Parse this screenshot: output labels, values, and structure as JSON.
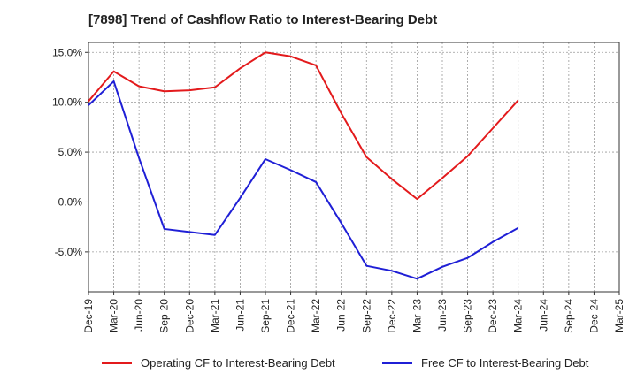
{
  "title": "[7898]  Trend of Cashflow Ratio to Interest-Bearing Debt",
  "chart_data": {
    "type": "line",
    "title": "[7898]  Trend of Cashflow Ratio to Interest-Bearing Debt",
    "xlabel": "",
    "ylabel": "",
    "categories": [
      "Dec-19",
      "Mar-20",
      "Jun-20",
      "Sep-20",
      "Dec-20",
      "Mar-21",
      "Jun-21",
      "Sep-21",
      "Dec-21",
      "Mar-22",
      "Jun-22",
      "Sep-22",
      "Dec-22",
      "Mar-23",
      "Jun-23",
      "Sep-23",
      "Dec-23",
      "Mar-24",
      "Jun-24",
      "Sep-24",
      "Dec-24",
      "Mar-25"
    ],
    "y_ticks": [
      15.0,
      10.0,
      5.0,
      0.0,
      -5.0
    ],
    "y_tick_labels": [
      "15.0%",
      "10.0%",
      "5.0%",
      "0.0%",
      "-5.0%"
    ],
    "ylim": [
      -9.0,
      16.0
    ],
    "grid": true,
    "legend_position": "bottom",
    "series": [
      {
        "name": "Operating CF to Interest-Bearing Debt",
        "color": "#e31a1c",
        "values": [
          10.1,
          13.1,
          11.6,
          11.1,
          11.2,
          11.5,
          13.4,
          15.0,
          14.6,
          13.7,
          8.9,
          4.5,
          2.3,
          0.3,
          2.4,
          4.6,
          7.4,
          10.2,
          null,
          null,
          null,
          null
        ]
      },
      {
        "name": "Free CF to Interest-Bearing Debt",
        "color": "#1f1fd6",
        "values": [
          9.7,
          12.1,
          4.4,
          -2.7,
          -3.0,
          -3.3,
          0.4,
          4.3,
          3.2,
          2.0,
          -2.1,
          -6.4,
          -6.9,
          -7.7,
          -6.5,
          -5.6,
          -4.0,
          -2.6,
          null,
          null,
          null,
          null
        ]
      }
    ]
  }
}
